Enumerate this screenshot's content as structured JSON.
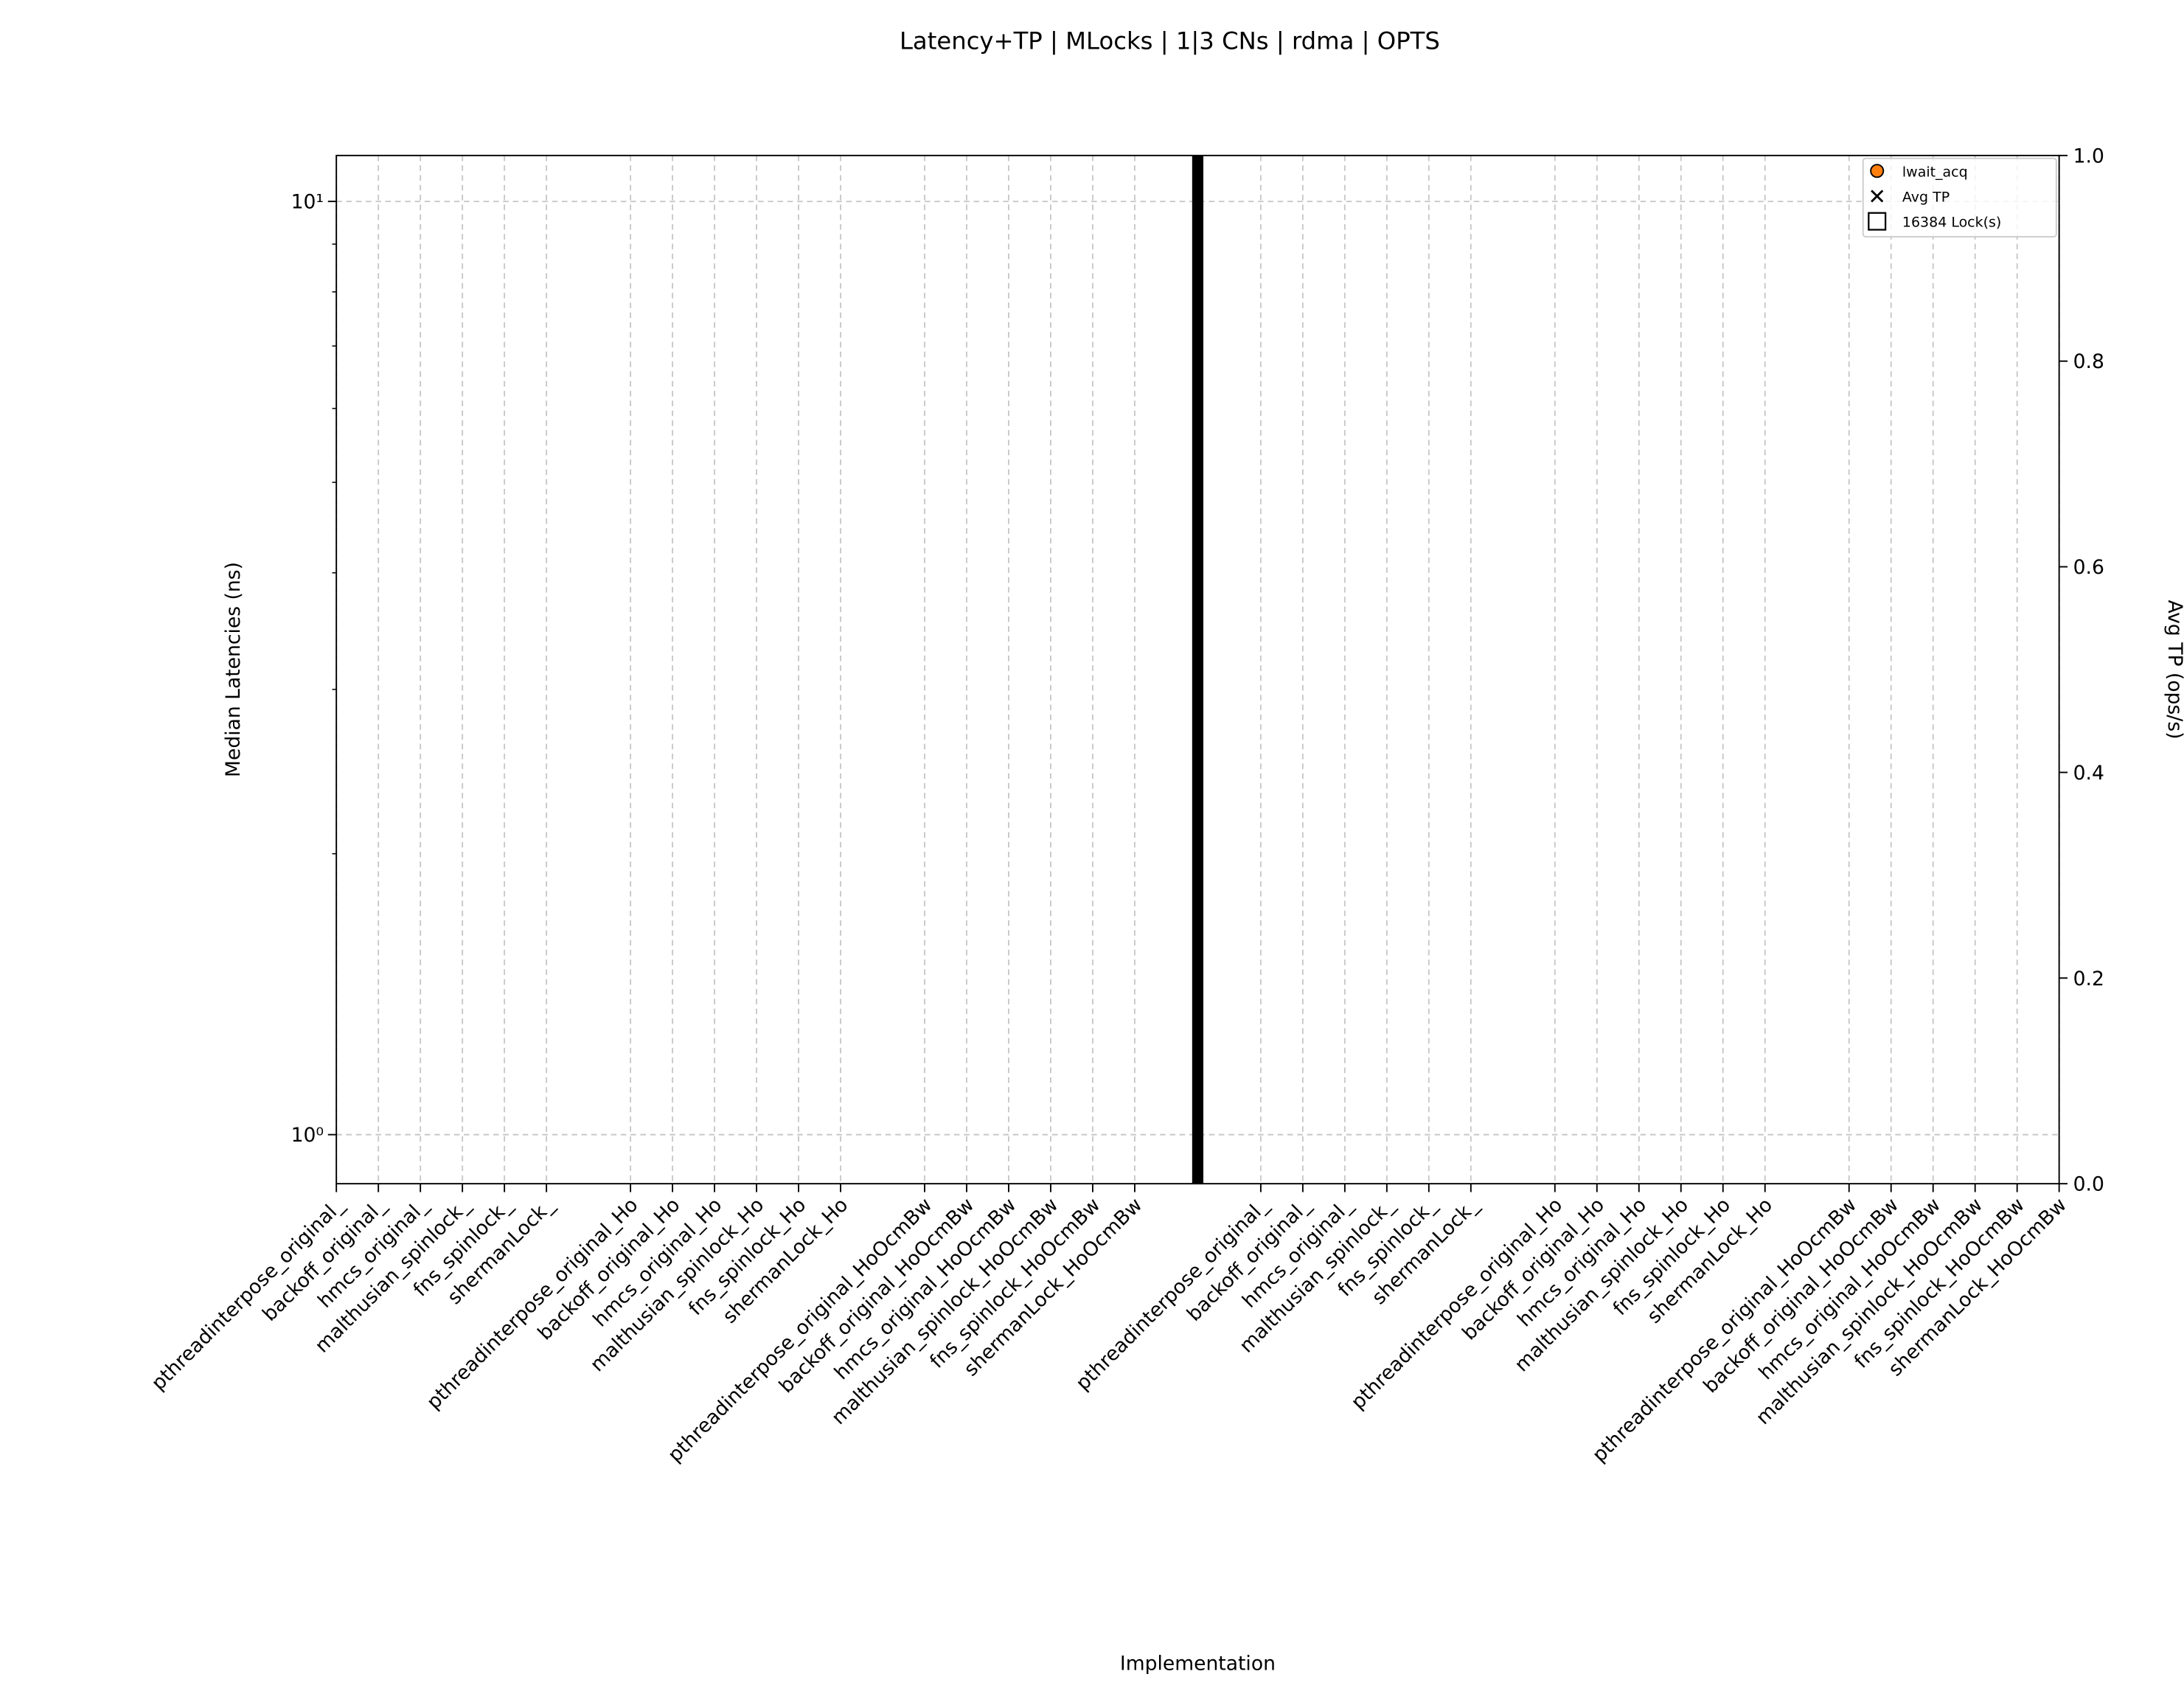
{
  "chart_data": {
    "type": "scatter",
    "title": "Latency+TP | MLocks | 1|3 CNs | rdma | OPTS",
    "x_label": "Implementation",
    "y_label": "Median Latencies (ns)",
    "y2_label": "Avg TP (ops/s)",
    "categories": [
      "pthreadinterpose_original_",
      "backoff_original_",
      "hmcs_original_",
      "malthusian_spinlock_",
      "fns_spinlock_",
      "shermanLock_",
      null,
      "pthreadinterpose_original_Ho",
      "backoff_original_Ho",
      "hmcs_original_Ho",
      "malthusian_spinlock_Ho",
      "fns_spinlock_Ho",
      "shermanLock_Ho",
      null,
      "pthreadinterpose_original_HoOcmBw",
      "backoff_original_HoOcmBw",
      "hmcs_original_HoOcmBw",
      "malthusian_spinlock_HoOcmBw",
      "fns_spinlock_HoOcmBw",
      "shermanLock_HoOcmBw",
      null,
      null,
      "pthreadinterpose_original_",
      "backoff_original_",
      "hmcs_original_",
      "malthusian_spinlock_",
      "fns_spinlock_",
      "shermanLock_",
      null,
      "pthreadinterpose_original_Ho",
      "backoff_original_Ho",
      "hmcs_original_Ho",
      "malthusian_spinlock_Ho",
      "fns_spinlock_Ho",
      "shermanLock_Ho",
      null,
      "pthreadinterpose_original_HoOcmBw",
      "backoff_original_HoOcmBw",
      "hmcs_original_HoOcmBw",
      "malthusian_spinlock_HoOcmBw",
      "fns_spinlock_HoOcmBw",
      "shermanLock_HoOcmBw"
    ],
    "log_y": true,
    "ylim": [
      0.886,
      11.2
    ],
    "yticks": [
      {
        "value": 1,
        "label": "10⁰"
      },
      {
        "value": 10,
        "label": "10¹"
      }
    ],
    "yminor_ticks": [
      2,
      3,
      4,
      5,
      6,
      7,
      8,
      9
    ],
    "y2lim": [
      0,
      1
    ],
    "y2ticks": [
      {
        "value": 0,
        "label": "0.0"
      },
      0.2,
      0.4,
      0.6,
      0.8,
      {
        "value": 1,
        "label": "1.0"
      }
    ],
    "grid": true,
    "legend": {
      "loc": "upper right",
      "entries": [
        {
          "label": "lwait_acq",
          "marker": "circle",
          "color": "#ff7f0e"
        },
        {
          "label": "Avg TP",
          "marker": "x",
          "color": "#000000"
        },
        {
          "label": "16384 Lock(s)",
          "marker": "square",
          "color": "#000000"
        }
      ]
    }
  }
}
